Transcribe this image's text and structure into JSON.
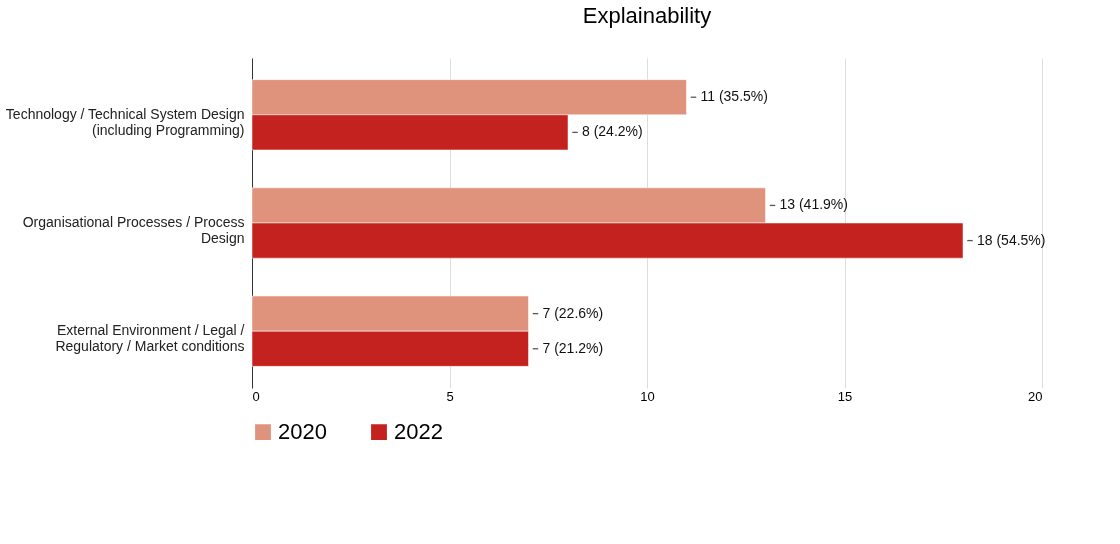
{
  "chart_data": {
    "type": "bar",
    "title": "Explainability",
    "orientation": "horizontal",
    "categories": [
      "Technology / Technical System Design (including Programming)",
      "Organisational Processes / Process Design",
      "External Environment / Legal / Regulatory / Market conditions"
    ],
    "series": [
      {
        "name": "2020",
        "color": "#e0937c",
        "values": [
          11,
          13,
          7
        ],
        "value_labels": [
          "11 (35.5%)",
          "13 (41.9%)",
          "7 (22.6%)"
        ]
      },
      {
        "name": "2022",
        "color": "#c4221f",
        "values": [
          8,
          18,
          7
        ],
        "value_labels": [
          "8 (24.2%)",
          "18 (54.5%)",
          "7 (21.2%)"
        ]
      }
    ],
    "xlim": [
      0,
      20
    ],
    "xticks": [
      0,
      5,
      10,
      15,
      20
    ],
    "grid": "x",
    "legend": "bottom"
  }
}
